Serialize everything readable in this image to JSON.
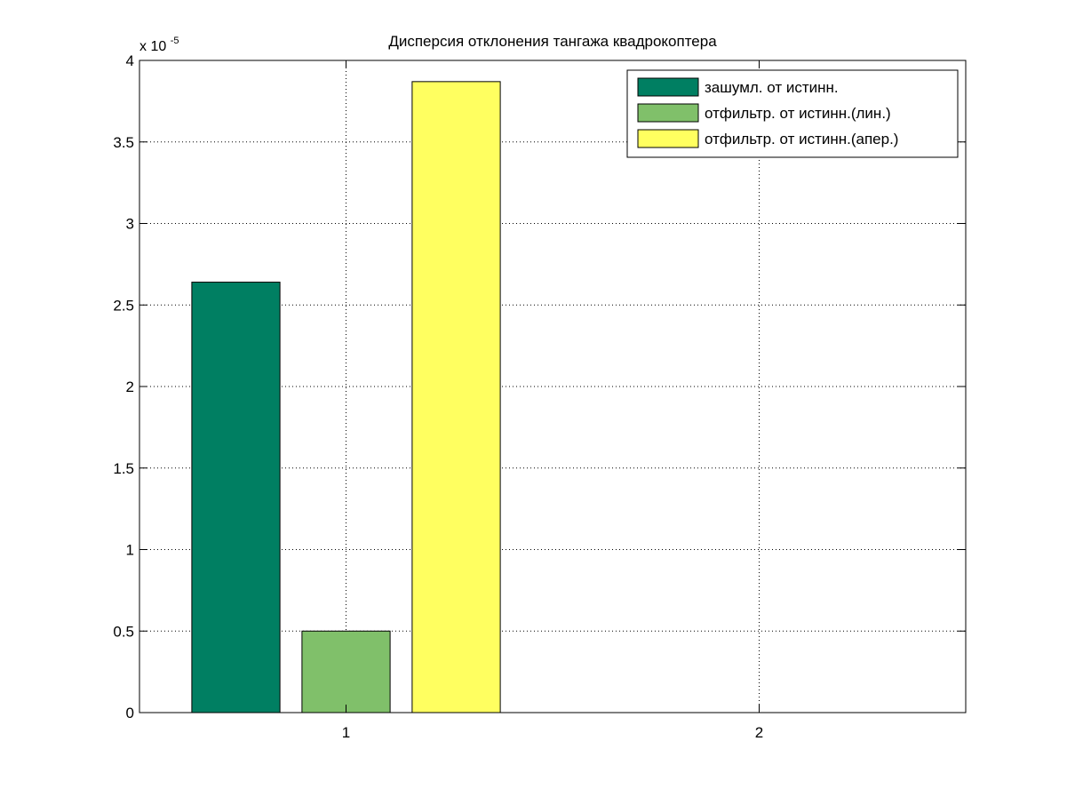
{
  "chart_data": {
    "type": "bar",
    "title": "Дисперсия отклонения тангажа квадрокоптера",
    "xlabel": "",
    "ylabel": "",
    "y_exponent_label": {
      "base": "x 10",
      "exponent": "-5"
    },
    "categories": [
      "1",
      "2"
    ],
    "xlim": [
      0.5,
      2.5
    ],
    "ylim": [
      0,
      4
    ],
    "yticks": [
      0,
      0.5,
      1,
      1.5,
      2,
      2.5,
      3,
      3.5,
      4
    ],
    "ytick_labels": [
      "0",
      "0.5",
      "1",
      "1.5",
      "2",
      "2.5",
      "3",
      "3.5",
      "4"
    ],
    "grid": true,
    "legend_position": "top-right",
    "series": [
      {
        "name": "зашумл. от истинн.",
        "color": "#007f62",
        "values": [
          2.64,
          0
        ]
      },
      {
        "name": "отфильтр. от истинн.(лин.)",
        "color": "#80c06a",
        "values": [
          0.5,
          0
        ]
      },
      {
        "name": "отфильтр. от истинн.(апер.)",
        "color": "#ffff60",
        "values": [
          3.87,
          0
        ]
      }
    ]
  }
}
